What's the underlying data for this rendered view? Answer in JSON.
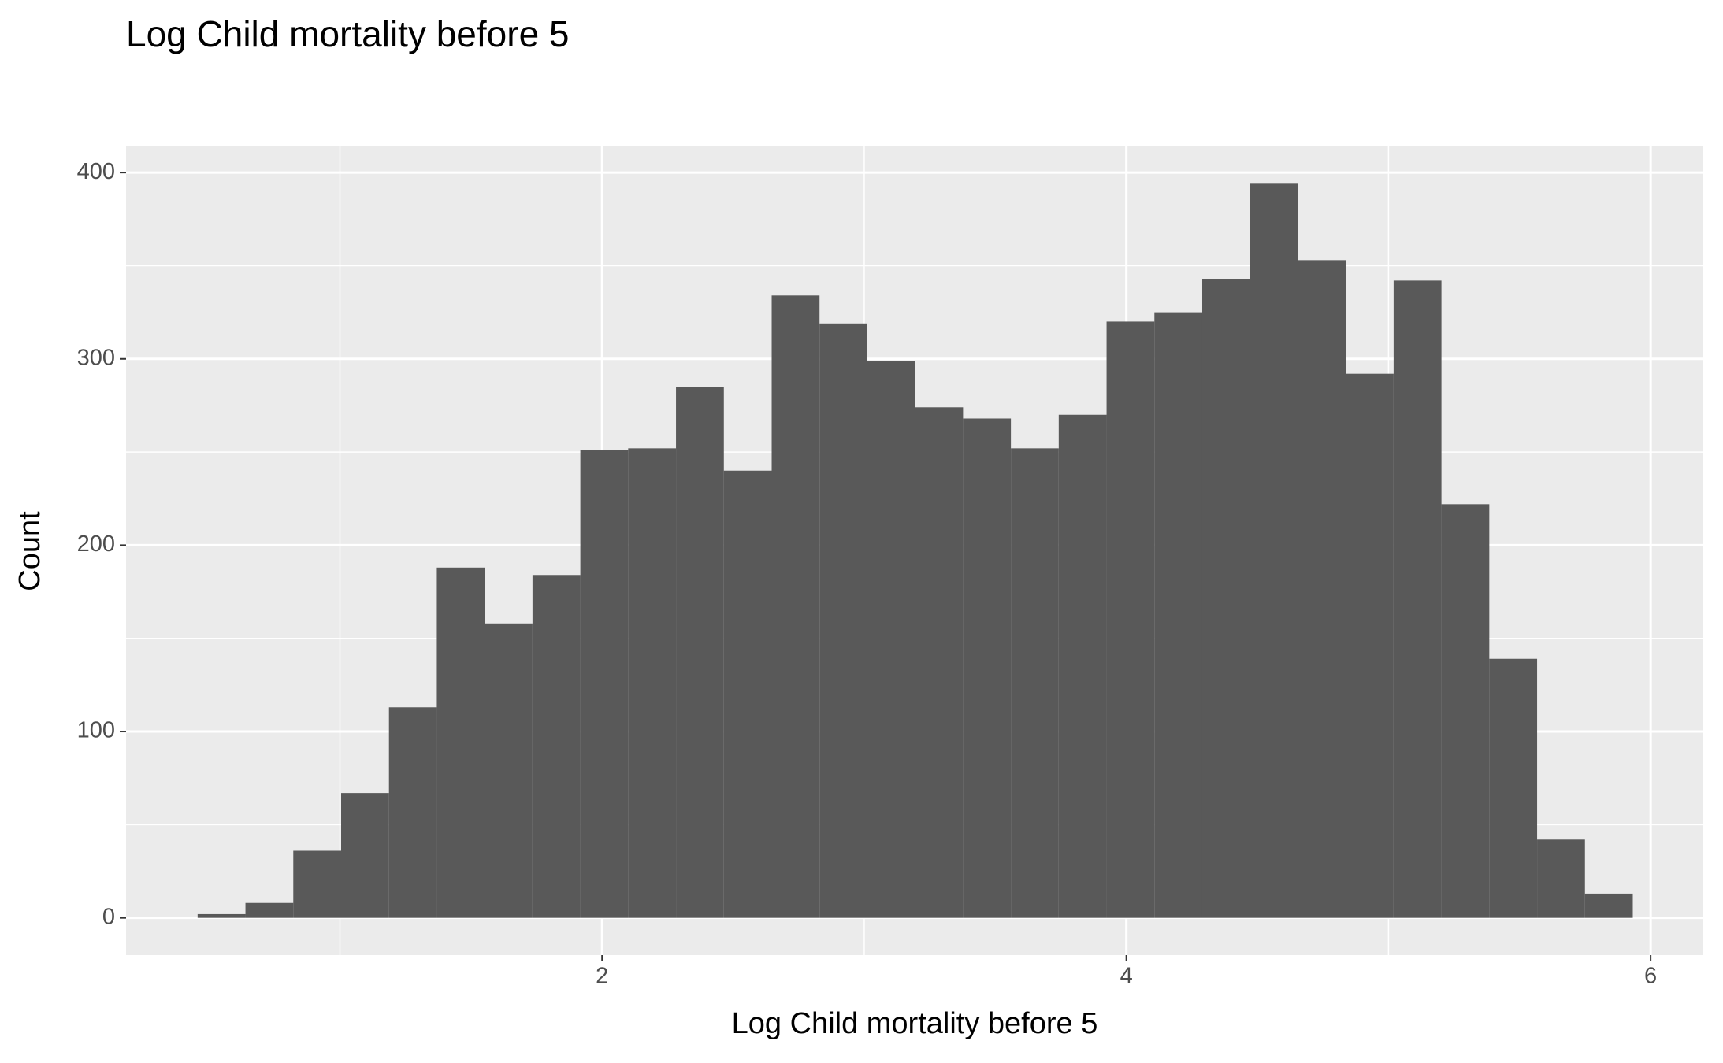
{
  "chart_data": {
    "type": "histogram",
    "title": "Log Child mortality before 5",
    "xlabel": "Log Child mortality before 5",
    "ylabel": "Count",
    "bins": [
      0.457,
      0.6395,
      0.822,
      1.0045,
      1.187,
      1.3695,
      1.552,
      1.7345,
      1.917,
      2.0995,
      2.282,
      2.4645,
      2.647,
      2.8295,
      3.012,
      3.1945,
      3.377,
      3.5595,
      3.742,
      3.9245,
      4.107,
      4.2895,
      4.472,
      4.6545,
      4.837,
      5.0195,
      5.202,
      5.3845,
      5.567,
      5.7495,
      5.932
    ],
    "counts": [
      2,
      8,
      36,
      67,
      113,
      188,
      158,
      184,
      251,
      252,
      285,
      240,
      334,
      319,
      299,
      274,
      268,
      252,
      270,
      320,
      325,
      343,
      394,
      353,
      292,
      342,
      222,
      139,
      42,
      13
    ],
    "color": "#595959",
    "xlim": [
      0.184,
      6.201
    ],
    "ylim": [
      -20,
      414
    ],
    "xticks": [
      2,
      4,
      6
    ],
    "yticks": [
      0,
      100,
      200,
      300,
      400
    ],
    "xminorticks": [
      1,
      3,
      5
    ],
    "yminorticks": [
      50,
      150,
      250,
      350
    ],
    "grid": true
  }
}
